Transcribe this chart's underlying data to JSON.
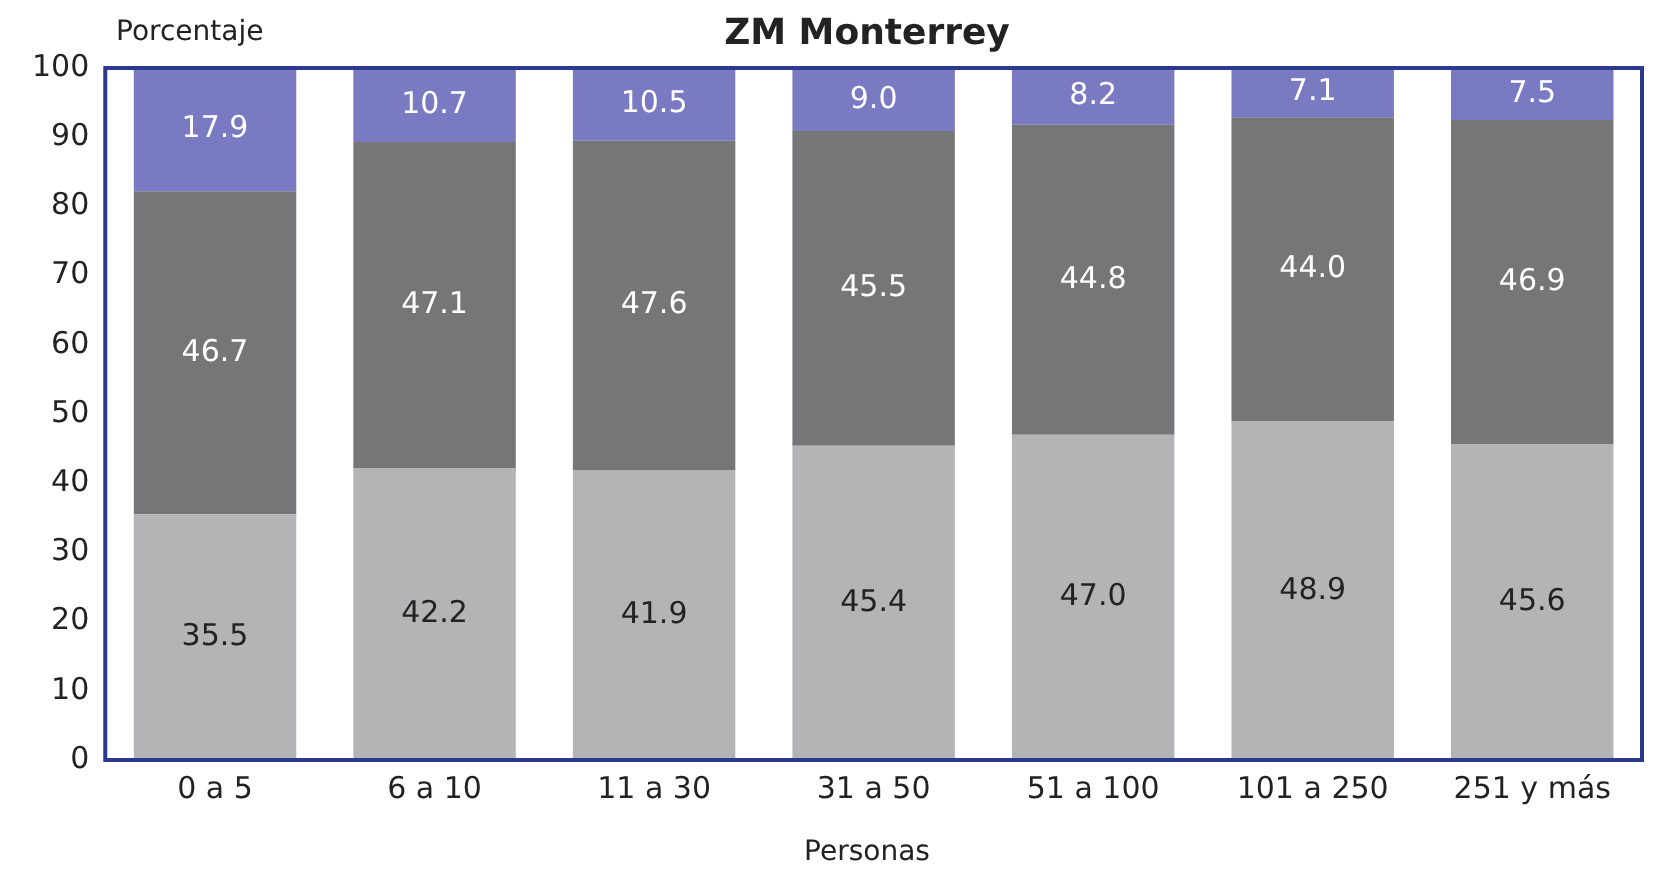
{
  "chart_data": {
    "type": "bar",
    "title": "ZM Monterrey",
    "xlabel": "Personas",
    "ylabel": "Porcentaje",
    "categories": [
      "0 a 5",
      "6 a 10",
      "11 a 30",
      "31 a 50",
      "51 a 100",
      "101 a 250",
      "251 y más"
    ],
    "stacked": true,
    "legend": false,
    "grid": false,
    "ylim": [
      0,
      100
    ],
    "yticks": [
      0,
      10,
      20,
      30,
      40,
      50,
      60,
      70,
      80,
      90,
      100
    ],
    "series": [
      {
        "color": "#b4b4b6",
        "values": [
          35.5,
          42.2,
          41.9,
          45.4,
          47.0,
          48.9,
          45.6
        ],
        "value_labels": [
          "35.5",
          "42.2",
          "41.9",
          "45.4",
          "47.0",
          "48.9",
          "45.6"
        ]
      },
      {
        "color": "#767679",
        "values": [
          46.7,
          47.1,
          47.6,
          45.5,
          44.8,
          44.0,
          46.9
        ],
        "value_labels": [
          "46.7",
          "47.1",
          "47.6",
          "45.5",
          "44.8",
          "44.0",
          "46.9"
        ]
      },
      {
        "color": "#7a7ac3",
        "values": [
          17.9,
          10.7,
          10.5,
          9.0,
          8.2,
          7.1,
          7.5
        ],
        "value_labels": [
          "17.9",
          "10.7",
          "10.5",
          "9.0",
          "8.2",
          "7.1",
          "7.5"
        ]
      }
    ]
  }
}
